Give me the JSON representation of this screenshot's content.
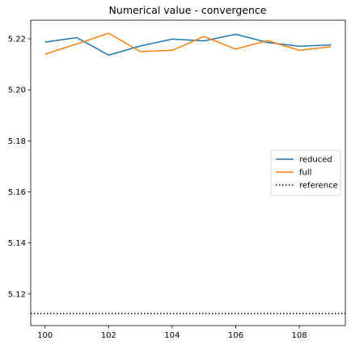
{
  "chart_data": {
    "type": "line",
    "title": "Numerical value - convergence",
    "xlabel": "",
    "ylabel": "",
    "x": [
      100,
      101,
      102,
      103,
      104,
      105,
      106,
      107,
      108,
      109
    ],
    "series": [
      {
        "name": "reduced",
        "color": "#1f77b4",
        "style": "solid",
        "values": [
          5.2187,
          5.2205,
          5.2136,
          5.2172,
          5.2199,
          5.2192,
          5.2218,
          5.2186,
          5.2171,
          5.2176
        ]
      },
      {
        "name": "full",
        "color": "#ff7f0e",
        "style": "solid",
        "values": [
          5.214,
          5.218,
          5.2222,
          5.215,
          5.2155,
          5.2209,
          5.216,
          5.2193,
          5.2155,
          5.2169
        ]
      },
      {
        "name": "reference",
        "color": "#000000",
        "style": "dotted",
        "constant": 5.1123
      }
    ],
    "xlim": [
      99.55,
      109.45
    ],
    "ylim": [
      5.1076,
      5.2273
    ],
    "xticks": [
      100,
      102,
      104,
      106,
      108
    ],
    "xtick_labels": [
      "100",
      "102",
      "104",
      "106",
      "108"
    ],
    "yticks": [
      5.12,
      5.14,
      5.16,
      5.18,
      5.2,
      5.22
    ],
    "ytick_labels": [
      "5.12",
      "5.14",
      "5.16",
      "5.18",
      "5.20",
      "5.22"
    ],
    "grid": false,
    "legend_position": "center-right"
  }
}
